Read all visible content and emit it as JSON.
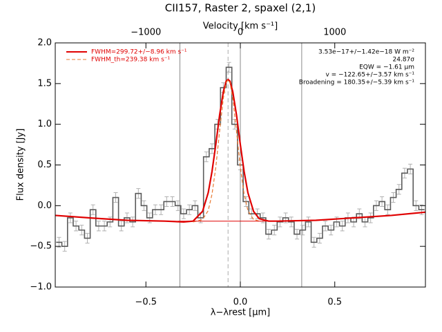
{
  "chart_data": {
    "type": "line",
    "title": "CII157, Raster 2, spaxel (2,1)",
    "x2label": "Velocity [km s⁻¹]",
    "xlabel": "λ−λrest [μm]",
    "ylabel": "Flux density [Jy]",
    "xlim": [
      -0.98,
      0.98
    ],
    "xticks": [
      {
        "value": -0.5,
        "label": "−0.5"
      },
      {
        "value": 0,
        "label": "0.0"
      },
      {
        "value": 0.5,
        "label": "0.5"
      }
    ],
    "x2lim": [
      -1960,
      1960
    ],
    "x2ticks": [
      {
        "value": -1000,
        "label": "−1000"
      },
      0,
      1000
    ],
    "ylim": [
      -1.0,
      2.0
    ],
    "yticks": [
      {
        "value": -1.0,
        "label": "−1.0"
      },
      {
        "value": -0.5,
        "label": "−0.5"
      },
      {
        "value": 0,
        "label": "0.0"
      },
      {
        "value": 0.5,
        "label": "0.5"
      },
      {
        "value": 1.0,
        "label": "1.0"
      },
      {
        "value": 1.5,
        "label": "1.5"
      },
      {
        "value": 2.0,
        "label": "2.0"
      }
    ],
    "series": [
      {
        "style": "step",
        "color": "#5a5a5a",
        "error_color": "#b0b0b0",
        "x": [
          -0.96,
          -0.93,
          -0.9,
          -0.87,
          -0.84,
          -0.81,
          -0.78,
          -0.75,
          -0.72,
          -0.69,
          -0.66,
          -0.63,
          -0.6,
          -0.57,
          -0.54,
          -0.51,
          -0.48,
          -0.45,
          -0.42,
          -0.39,
          -0.36,
          -0.33,
          -0.3,
          -0.27,
          -0.24,
          -0.21,
          -0.18,
          -0.15,
          -0.12,
          -0.09,
          -0.06,
          -0.03,
          0,
          0.03,
          0.06,
          0.09,
          0.12,
          0.15,
          0.18,
          0.21,
          0.24,
          0.27,
          0.3,
          0.33,
          0.36,
          0.39,
          0.42,
          0.45,
          0.48,
          0.51,
          0.54,
          0.57,
          0.6,
          0.63,
          0.66,
          0.69,
          0.72,
          0.75,
          0.78,
          0.81,
          0.84,
          0.87,
          0.9,
          0.93,
          0.96
        ],
        "values": [
          -0.45,
          -0.5,
          -0.15,
          -0.25,
          -0.3,
          -0.4,
          -0.05,
          -0.25,
          -0.25,
          -0.2,
          0.1,
          -0.25,
          -0.15,
          -0.2,
          0.15,
          0,
          -0.15,
          -0.05,
          -0.05,
          0.05,
          0.05,
          0,
          -0.1,
          -0.05,
          0,
          -0.15,
          0.6,
          0.7,
          1.0,
          1.45,
          1.7,
          1.0,
          0.5,
          0.05,
          -0.1,
          -0.1,
          -0.15,
          -0.35,
          -0.3,
          -0.2,
          -0.15,
          -0.2,
          -0.35,
          -0.3,
          -0.2,
          -0.45,
          -0.4,
          -0.25,
          -0.3,
          -0.2,
          -0.25,
          -0.15,
          -0.2,
          -0.1,
          -0.2,
          -0.15,
          0,
          0.05,
          -0.05,
          0.1,
          0.2,
          0.4,
          0.45,
          0,
          -0.05
        ],
        "errors": [
          0.06,
          0.06,
          0.06,
          0.06,
          0.06,
          0.06,
          0.06,
          0.06,
          0.06,
          0.06,
          0.06,
          0.06,
          0.06,
          0.06,
          0.06,
          0.06,
          0.06,
          0.06,
          0.06,
          0.06,
          0.06,
          0.06,
          0.06,
          0.06,
          0.06,
          0.06,
          0.06,
          0.06,
          0.06,
          0.06,
          0.06,
          0.06,
          0.06,
          0.06,
          0.06,
          0.06,
          0.06,
          0.06,
          0.06,
          0.06,
          0.06,
          0.06,
          0.06,
          0.06,
          0.06,
          0.06,
          0.06,
          0.06,
          0.06,
          0.06,
          0.06,
          0.06,
          0.06,
          0.06,
          0.06,
          0.06,
          0.06,
          0.06,
          0.06,
          0.06,
          0.06,
          0.06,
          0.06,
          0.06,
          0.06
        ]
      },
      {
        "name": "FWHM=299.72+/−8.96 km s⁻¹",
        "color": "#e00000",
        "x": [
          -0.98,
          -0.8,
          -0.6,
          -0.4,
          -0.3,
          -0.25,
          -0.2,
          -0.17,
          -0.15,
          -0.13,
          -0.11,
          -0.09,
          -0.075,
          -0.065,
          -0.055,
          -0.04,
          -0.02,
          0,
          0.02,
          0.04,
          0.07,
          0.1,
          0.15,
          0.2,
          0.4,
          0.6,
          0.8,
          0.98
        ],
        "values": [
          -0.12,
          -0.15,
          -0.18,
          -0.19,
          -0.2,
          -0.19,
          -0.07,
          0.16,
          0.42,
          0.75,
          1.11,
          1.4,
          1.53,
          1.55,
          1.53,
          1.4,
          1.11,
          0.75,
          0.42,
          0.16,
          -0.07,
          -0.16,
          -0.19,
          -0.19,
          -0.18,
          -0.15,
          -0.12,
          -0.08
        ]
      },
      {
        "name": "FWHM_th=239.38 km s⁻¹",
        "color": "#e87830",
        "dash": true,
        "x": [
          -0.25,
          -0.2,
          -0.17,
          -0.15,
          -0.13,
          -0.11,
          -0.09,
          -0.075,
          -0.065,
          -0.055,
          -0.04,
          -0.02,
          0,
          0.02,
          0.04,
          0.07,
          0.1
        ],
        "values": [
          -0.2,
          -0.17,
          -0.06,
          0.14,
          0.47,
          0.91,
          1.32,
          1.51,
          1.55,
          1.51,
          1.32,
          0.91,
          0.47,
          0.14,
          -0.06,
          -0.17,
          -0.19
        ]
      },
      {
        "color": "#e00000",
        "thin": true,
        "x": [
          -0.33,
          0.17
        ],
        "values": [
          -0.19,
          -0.19
        ]
      }
    ],
    "vlines": [
      -0.32,
      0,
      0.325
    ],
    "vline_dashed": -0.065,
    "annotations": [
      "3.53e−17+/−1.42e−18 W m⁻²",
      "24.87σ",
      "EQW = −1.61 μm",
      "v = −122.65+/−3.57 km s⁻¹",
      "Broadening = 180.35+/−5.39 km s⁻¹"
    ]
  }
}
